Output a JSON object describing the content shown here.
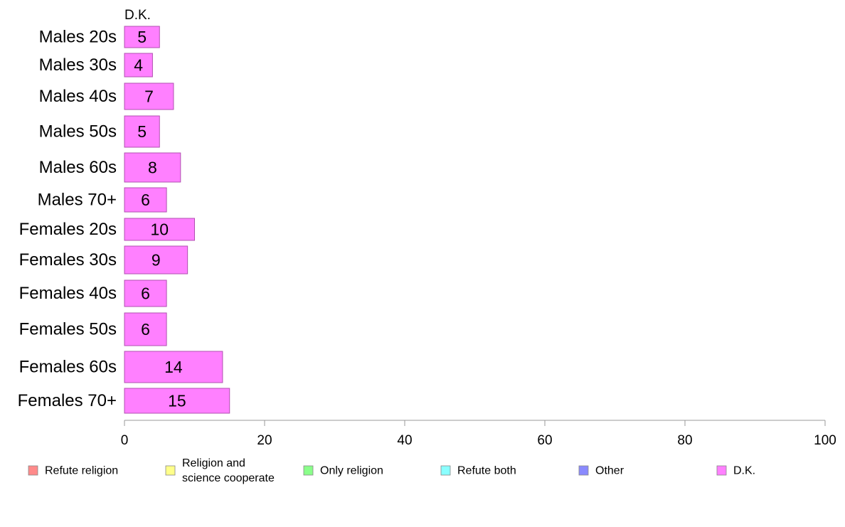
{
  "chart_data": {
    "type": "bar",
    "orientation": "horizontal",
    "title": "",
    "series_label": "D.K.",
    "categories": [
      "Males 20s",
      "Males 30s",
      "Males 40s",
      "Males 50s",
      "Males 60s",
      "Males 70+",
      "Females 20s",
      "Females 30s",
      "Females 40s",
      "Females 50s",
      "Females 60s",
      "Females 70+"
    ],
    "series": [
      {
        "name": "D.K.",
        "values": [
          5,
          4,
          7,
          5,
          8,
          6,
          10,
          9,
          6,
          6,
          14,
          15
        ]
      }
    ],
    "xlim": [
      0,
      100
    ],
    "xticks": [
      0,
      20,
      40,
      60,
      80,
      100
    ],
    "xlabel": "",
    "ylabel": "",
    "grid": false,
    "legend_position": "bottom",
    "legend": [
      {
        "label": "Refute religion",
        "color": "#ff8a8a"
      },
      {
        "label": "Religion and\nscience cooperate",
        "color": "#ffff8a"
      },
      {
        "label": "Only religion",
        "color": "#8aff8a"
      },
      {
        "label": "Refute both",
        "color": "#8affff"
      },
      {
        "label": "Other",
        "color": "#8a8aff"
      },
      {
        "label": "D.K.",
        "color": "#ff80ff"
      }
    ],
    "colors": {
      "bar_fill": "#ff80ff",
      "bar_stroke": "#b050b0",
      "axis": "#999999"
    }
  }
}
